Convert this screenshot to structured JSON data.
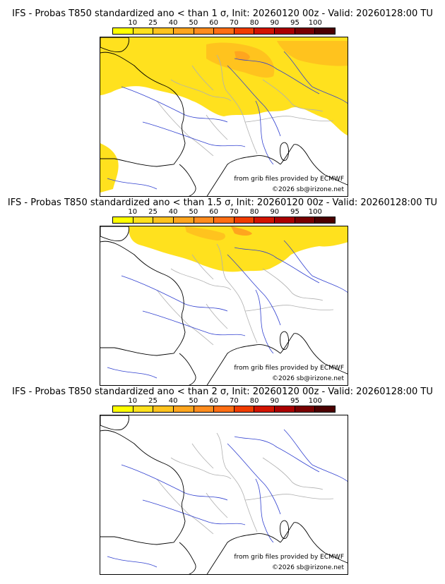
{
  "scale": {
    "labels": [
      "10",
      "25",
      "40",
      "50",
      "60",
      "70",
      "80",
      "90",
      "95",
      "100"
    ],
    "colors": [
      "#ffff00",
      "#ffe11e",
      "#ffc31e",
      "#ffa51e",
      "#ff8c1e",
      "#ff6e14",
      "#f03c00",
      "#d21400",
      "#aa0000",
      "#780000",
      "#4b0000"
    ]
  },
  "credits": {
    "source": "from grib files provided by ECMWF",
    "copyright": "©2026 sb@irizone.net"
  },
  "panels": [
    {
      "title": "IFS - Probas T850  standardized ano < than 1 σ, Init: 20260120 00z - Valid: 20260128:00 TU",
      "coverage_level": "high"
    },
    {
      "title": "IFS - Probas T850  standardized ano < than 1.5 σ, Init: 20260120 00z - Valid: 20260128:00 TU",
      "coverage_level": "medium"
    },
    {
      "title": "IFS - Probas T850  standardized ano < than 2 σ, Init: 20260120 00z - Valid: 20260128:00 TU",
      "coverage_level": "none"
    }
  ]
}
